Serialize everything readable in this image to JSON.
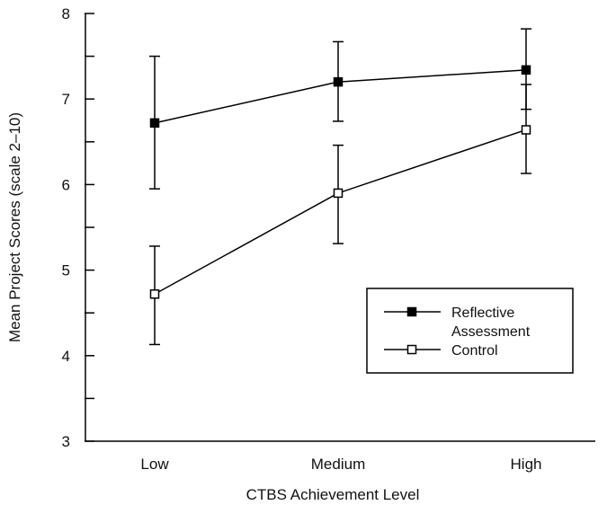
{
  "chart_data": {
    "type": "line",
    "title": "",
    "xlabel": "CTBS Achievement Level",
    "ylabel": "Mean Project Scores (scale 2–10)",
    "categories": [
      "Low",
      "Medium",
      "High"
    ],
    "ylim": [
      3,
      8
    ],
    "yticks": [
      "3",
      "4",
      "5",
      "6",
      "7",
      "8"
    ],
    "grid": false,
    "legend_position": "lower-right",
    "series": [
      {
        "name_lines": [
          "Reflective",
          "Assessment"
        ],
        "marker": "filled-square",
        "color": "#000000",
        "values": [
          6.72,
          7.2,
          7.34
        ],
        "err_low": [
          5.95,
          6.74,
          6.88
        ],
        "err_high": [
          7.5,
          7.67,
          7.82
        ]
      },
      {
        "name_lines": [
          "Control"
        ],
        "marker": "open-square",
        "color": "#000000",
        "values": [
          4.72,
          5.9,
          6.64
        ],
        "err_low": [
          4.13,
          5.31,
          6.13
        ],
        "err_high": [
          5.28,
          6.46,
          7.17
        ]
      }
    ]
  }
}
